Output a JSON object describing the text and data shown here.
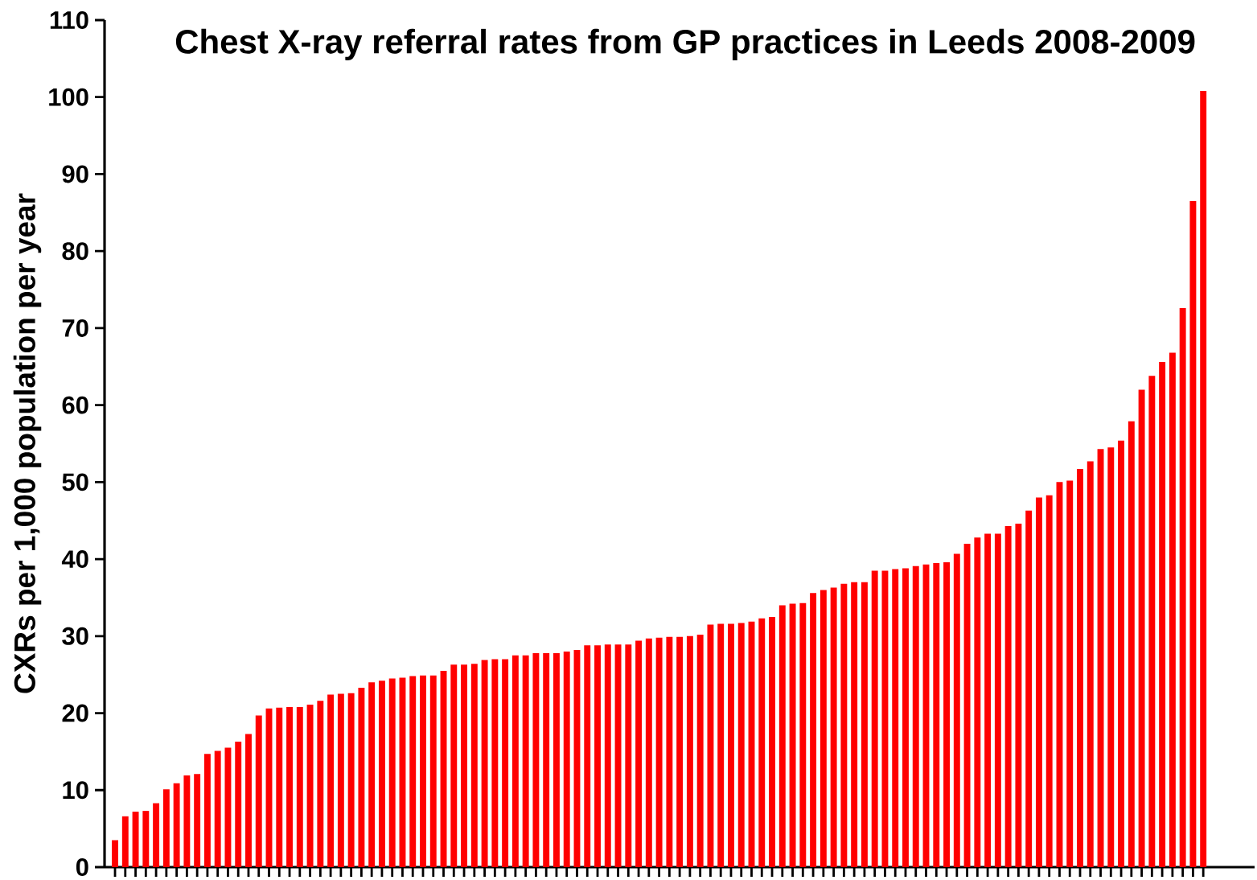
{
  "chart_data": {
    "type": "bar",
    "title": "Chest X-ray referral rates from GP practices in Leeds 2008-2009",
    "ylabel": "CXRs per 1,000 population per year",
    "categories": [
      null,
      null,
      null,
      null,
      null,
      null,
      null,
      null,
      null,
      null,
      null,
      null,
      null,
      null,
      null,
      null,
      null,
      null,
      null,
      null,
      null,
      null,
      null,
      null,
      null,
      null,
      null,
      null,
      null,
      null,
      null,
      null,
      null,
      null,
      null,
      null,
      null,
      null,
      null,
      null,
      null,
      null,
      null,
      null,
      null,
      null,
      null,
      null,
      null,
      null,
      null,
      null,
      null,
      null,
      null,
      null,
      null,
      null,
      null,
      null,
      null,
      null,
      null,
      null,
      null,
      null,
      null,
      null,
      null,
      null,
      null,
      null,
      null,
      null,
      null,
      null,
      null,
      null,
      null,
      null,
      null,
      null,
      null,
      null,
      null,
      null,
      null,
      null,
      null,
      null,
      null,
      null,
      null,
      null,
      null,
      null,
      null,
      null,
      null,
      null,
      null,
      null,
      null,
      null,
      null,
      null,
      null
    ],
    "values": [
      3.5,
      6.6,
      7.2,
      7.3,
      8.3,
      10.1,
      10.9,
      11.9,
      12.1,
      14.7,
      15.1,
      15.5,
      16.3,
      17.3,
      19.7,
      20.6,
      20.7,
      20.8,
      20.8,
      21.1,
      21.6,
      22.4,
      22.5,
      22.6,
      23.3,
      24.0,
      24.2,
      24.5,
      24.6,
      24.8,
      24.9,
      24.9,
      25.5,
      26.3,
      26.3,
      26.4,
      26.9,
      27.0,
      27.0,
      27.5,
      27.5,
      27.8,
      27.8,
      27.8,
      28.0,
      28.2,
      28.8,
      28.8,
      28.9,
      28.9,
      28.9,
      29.4,
      29.7,
      29.8,
      29.9,
      29.9,
      30.0,
      30.2,
      31.5,
      31.6,
      31.6,
      31.7,
      31.9,
      32.3,
      32.5,
      34.0,
      34.2,
      34.3,
      35.6,
      36.0,
      36.3,
      36.8,
      37.0,
      37.0,
      38.5,
      38.5,
      38.7,
      38.8,
      39.1,
      39.3,
      39.5,
      39.6,
      40.7,
      42.0,
      42.8,
      43.3,
      43.3,
      44.3,
      44.6,
      46.3,
      48.0,
      48.3,
      50.0,
      50.2,
      51.7,
      52.7,
      54.3,
      54.5,
      55.4,
      57.9,
      62.0,
      63.8,
      65.6,
      66.8,
      72.6,
      86.5,
      100.8
    ],
    "color": "#ff0000",
    "ylim": [
      0,
      110
    ],
    "yticks": [
      0,
      10,
      20,
      30,
      40,
      50,
      60,
      70,
      80,
      90,
      100,
      110
    ]
  }
}
